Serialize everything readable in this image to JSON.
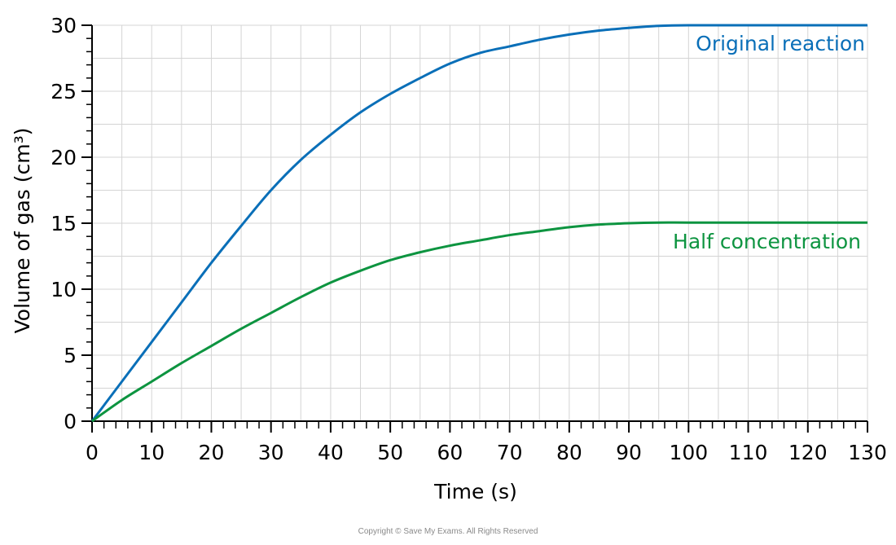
{
  "chart_data": {
    "type": "line",
    "xlabel": "Time (s)",
    "ylabel": "Volume of gas (cm³)",
    "xlim": [
      0,
      130
    ],
    "ylim": [
      0,
      30
    ],
    "x_ticks": [
      0,
      10,
      20,
      30,
      40,
      50,
      60,
      70,
      80,
      90,
      100,
      110,
      120,
      130
    ],
    "y_ticks": [
      0,
      5,
      10,
      15,
      20,
      25,
      30
    ],
    "grid": true,
    "series": [
      {
        "name": "Original reaction",
        "color": "#0a6fb8",
        "x": [
          0,
          5,
          10,
          15,
          20,
          25,
          30,
          35,
          40,
          45,
          50,
          55,
          60,
          65,
          70,
          75,
          80,
          85,
          90,
          95,
          100,
          110,
          120,
          130
        ],
        "y": [
          0,
          3.0,
          6.0,
          9.0,
          12.0,
          14.8,
          17.5,
          19.8,
          21.7,
          23.4,
          24.8,
          26.0,
          27.1,
          27.9,
          28.4,
          28.9,
          29.3,
          29.6,
          29.8,
          29.95,
          30.0,
          30.0,
          30.0,
          30.0
        ]
      },
      {
        "name": "Half concentration",
        "color": "#0d9440",
        "x": [
          0,
          5,
          10,
          15,
          20,
          25,
          30,
          35,
          40,
          45,
          50,
          55,
          60,
          65,
          70,
          75,
          80,
          85,
          90,
          95,
          100,
          110,
          120,
          130
        ],
        "y": [
          0,
          1.6,
          3.0,
          4.4,
          5.7,
          7.0,
          8.2,
          9.4,
          10.5,
          11.4,
          12.2,
          12.8,
          13.3,
          13.7,
          14.1,
          14.4,
          14.7,
          14.9,
          15.0,
          15.05,
          15.05,
          15.05,
          15.05,
          15.05
        ]
      }
    ]
  },
  "copyright": "Copyright © Save My Exams. All Rights Reserved"
}
